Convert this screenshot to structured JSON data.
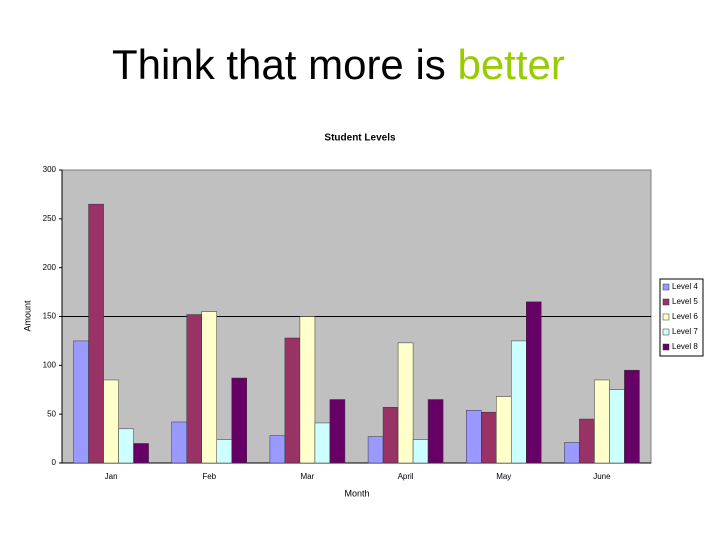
{
  "slide": {
    "title": "Think that more is",
    "title_highlight": "better"
  },
  "chart_data": {
    "type": "bar",
    "title": "Student Levels",
    "x_label": "Month",
    "y_label": "Amount",
    "categories": [
      "Jan",
      "Feb",
      "Mar",
      "April",
      "May",
      "June"
    ],
    "series": [
      {
        "name": "Level 4",
        "color": "#9999ff",
        "values": [
          125,
          42,
          28,
          27,
          54,
          21
        ]
      },
      {
        "name": "Level 5",
        "color": "#993366",
        "values": [
          265,
          152,
          128,
          57,
          52,
          45
        ]
      },
      {
        "name": "Level 6",
        "color": "#ffffcc",
        "values": [
          85,
          155,
          150,
          123,
          68,
          85
        ]
      },
      {
        "name": "Level 7",
        "color": "#ccffff",
        "values": [
          35,
          24,
          41,
          24,
          125,
          75
        ]
      },
      {
        "name": "Level 8",
        "color": "#660066",
        "values": [
          20,
          87,
          65,
          65,
          165,
          95
        ]
      }
    ],
    "ylim": [
      0,
      300
    ],
    "yticks": [
      0,
      50,
      100,
      150,
      200,
      250,
      300
    ],
    "grid_lines": [
      150
    ],
    "legend": "right"
  }
}
